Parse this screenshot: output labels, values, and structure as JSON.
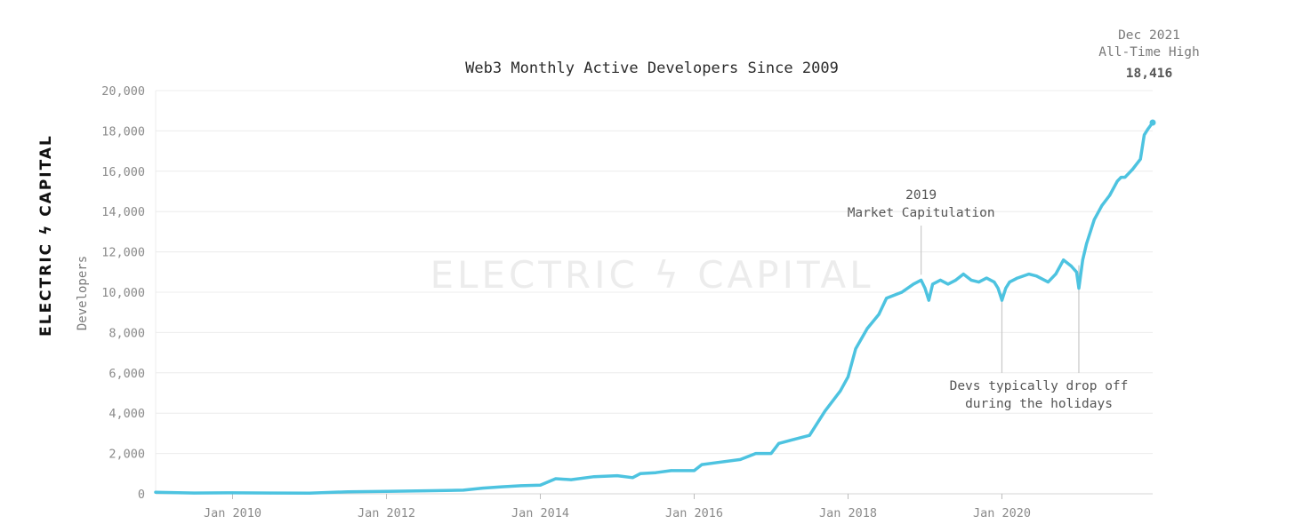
{
  "chart_data": {
    "type": "line",
    "title": "Web3 Monthly Active Developers Since 2009",
    "xlabel": "",
    "ylabel": "Developers",
    "xlim": [
      2009.0,
      2021.96
    ],
    "ylim": [
      0,
      20000
    ],
    "x_ticks": [
      2010,
      2012,
      2014,
      2016,
      2018,
      2020
    ],
    "x_tick_labels": [
      "Jan 2010",
      "Jan 2012",
      "Jan 2014",
      "Jan 2016",
      "Jan 2018",
      "Jan 2020"
    ],
    "y_ticks": [
      0,
      2000,
      4000,
      6000,
      8000,
      10000,
      12000,
      14000,
      16000,
      18000,
      20000
    ],
    "y_tick_labels": [
      "0",
      "2,000",
      "4,000",
      "6,000",
      "8,000",
      "10,000",
      "12,000",
      "14,000",
      "16,000",
      "18,000",
      "20,000"
    ],
    "grid": true,
    "line_color": "#4dc3e0",
    "series": [
      {
        "name": "Monthly Active Developers",
        "x": [
          2009.0,
          2009.5,
          2010.0,
          2010.5,
          2011.0,
          2011.5,
          2012.0,
          2012.5,
          2013.0,
          2013.25,
          2013.5,
          2013.75,
          2014.0,
          2014.2,
          2014.4,
          2014.7,
          2015.0,
          2015.2,
          2015.3,
          2015.5,
          2015.7,
          2016.0,
          2016.1,
          2016.3,
          2016.6,
          2016.8,
          2017.0,
          2017.1,
          2017.3,
          2017.5,
          2017.7,
          2017.9,
          2018.0,
          2018.1,
          2018.25,
          2018.4,
          2018.5,
          2018.7,
          2018.85,
          2018.95,
          2019.0,
          2019.05,
          2019.1,
          2019.2,
          2019.3,
          2019.4,
          2019.5,
          2019.6,
          2019.7,
          2019.8,
          2019.9,
          2019.95,
          2020.0,
          2020.05,
          2020.1,
          2020.2,
          2020.35,
          2020.45,
          2020.6,
          2020.7,
          2020.8,
          2020.9,
          2020.97,
          2021.0,
          2021.05,
          2021.1,
          2021.2,
          2021.3,
          2021.4,
          2021.5,
          2021.55,
          2021.6,
          2021.7,
          2021.8,
          2021.85,
          2021.9,
          2021.96
        ],
        "values": [
          80,
          40,
          50,
          40,
          30,
          100,
          120,
          150,
          180,
          280,
          350,
          400,
          430,
          750,
          700,
          850,
          900,
          800,
          1000,
          1050,
          1150,
          1150,
          1450,
          1550,
          1700,
          2000,
          2000,
          2500,
          2700,
          2900,
          4100,
          5100,
          5800,
          7200,
          8200,
          8900,
          9700,
          10000,
          10400,
          10600,
          10200,
          9600,
          10400,
          10600,
          10400,
          10600,
          10900,
          10600,
          10500,
          10700,
          10500,
          10200,
          9600,
          10200,
          10500,
          10700,
          10900,
          10800,
          10500,
          10900,
          11600,
          11300,
          11000,
          10200,
          11600,
          12400,
          13600,
          14300,
          14800,
          15500,
          15700,
          15700,
          16100,
          16600,
          17800,
          18100,
          18416
        ]
      }
    ],
    "annotations": [
      {
        "lines": [
          "2019",
          "Market Capitulation"
        ],
        "x": 2018.95
      },
      {
        "lines": [
          "Devs typically drop off",
          "during the holidays"
        ],
        "x_marks": [
          2020.0,
          2021.0
        ]
      },
      {
        "lines": [
          "Dec 2021",
          "All-Time High"
        ],
        "value_label": "18,416",
        "x": 2021.96
      }
    ]
  },
  "branding": {
    "vertical_logo": "ELECTRIC ϟ CAPITAL",
    "watermark": "ELECTRIC ϟ CAPITAL"
  }
}
